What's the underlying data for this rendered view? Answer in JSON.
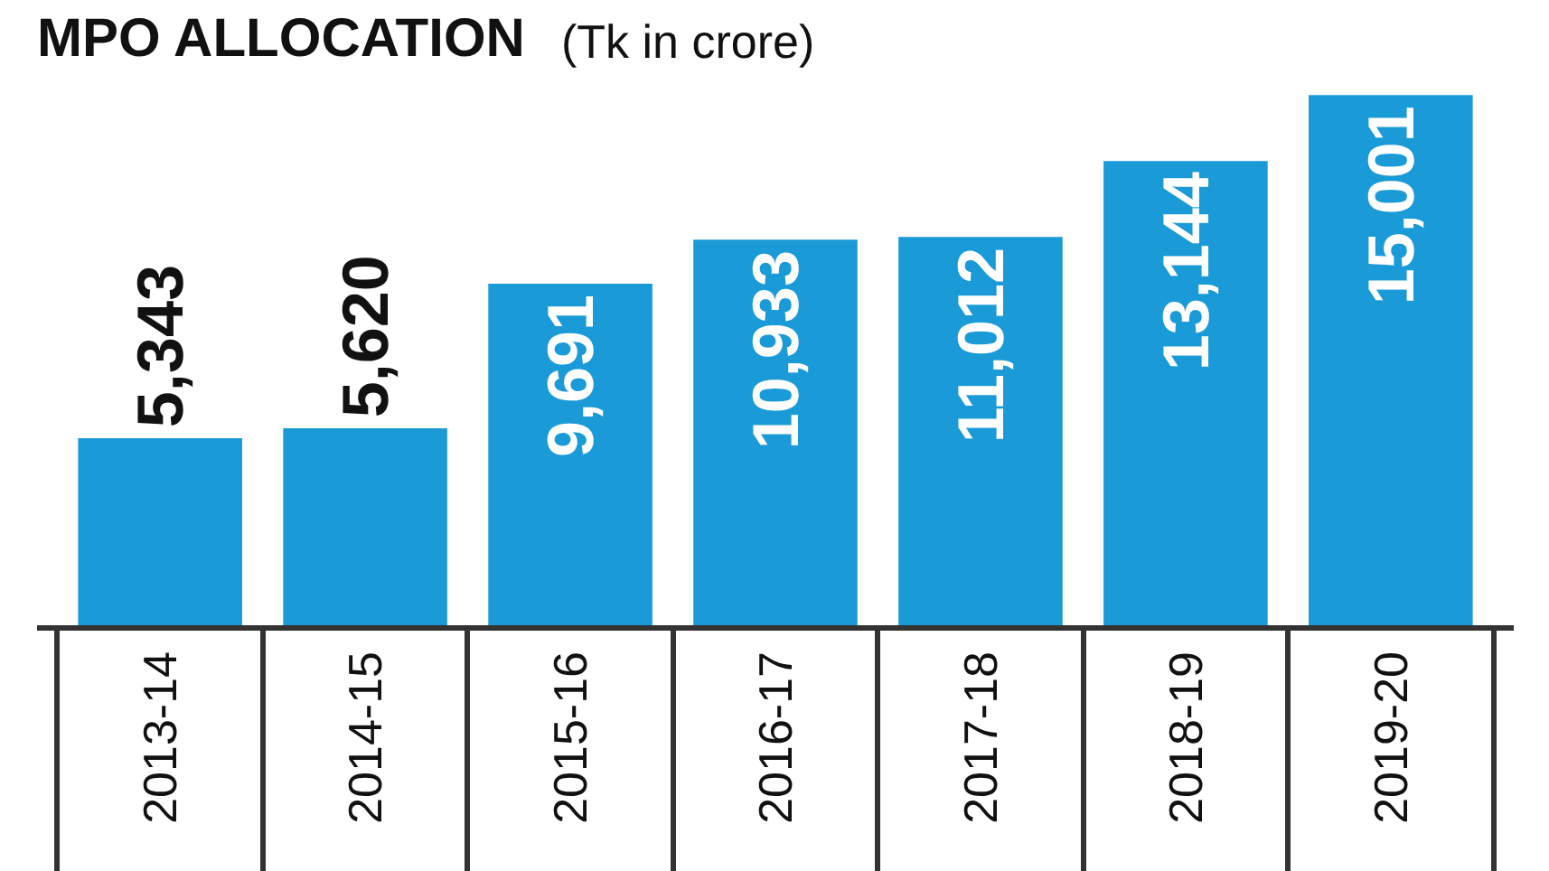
{
  "chart_data": {
    "type": "bar",
    "title": "MPO ALLOCATION",
    "subtitle": "(Tk in crore)",
    "categories": [
      "2013-14",
      "2014-15",
      "2015-16",
      "2016-17",
      "2017-18",
      "2018-19",
      "2019-20"
    ],
    "values": [
      5343,
      5620,
      9691,
      10933,
      11012,
      13144,
      15001
    ],
    "value_labels": [
      "5,343",
      "5,620",
      "9,691",
      "10,933",
      "11,012",
      "13,144",
      "15,001"
    ],
    "color": "#1a9ad6",
    "grid": false
  }
}
